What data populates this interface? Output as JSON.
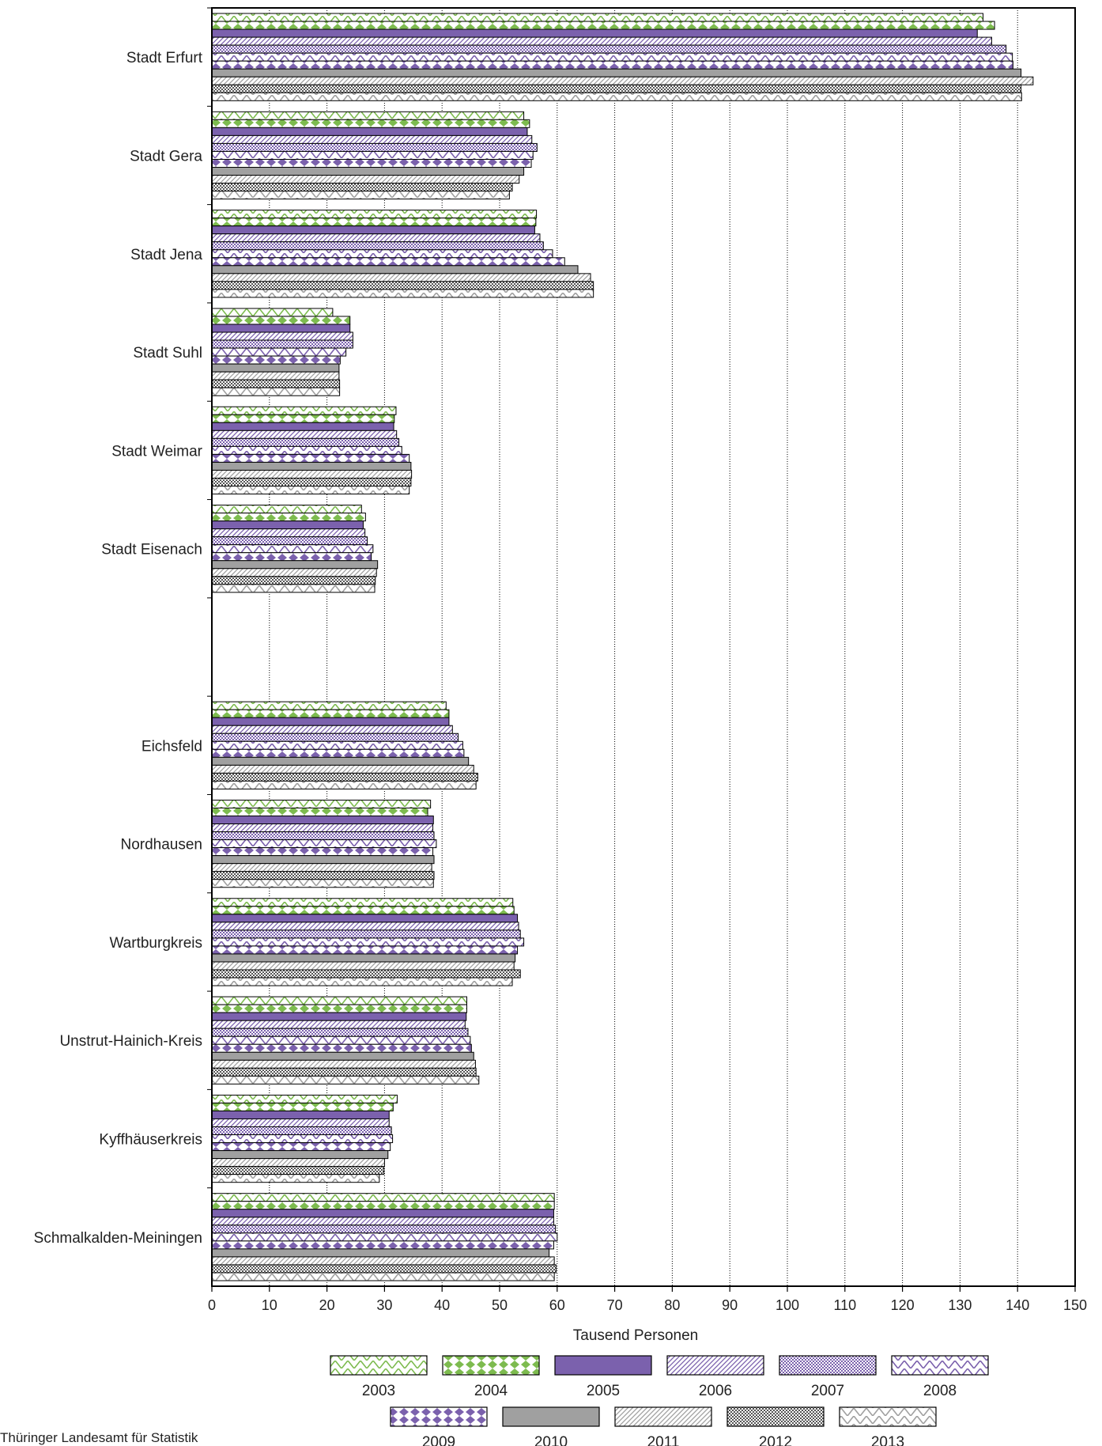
{
  "footer_text": "Thüringer Landesamt für Statistik",
  "colors": {
    "green": "#7dbb4f",
    "purple": "#7b61ad",
    "gray": "#a0a0a0",
    "darkgray": "#555555",
    "outline": "#000000"
  },
  "chart_data": {
    "type": "bar",
    "orientation": "horizontal",
    "xlabel": "Tausend Personen",
    "xlim": [
      0,
      150
    ],
    "xticks": [
      0,
      10,
      20,
      30,
      40,
      50,
      60,
      70,
      80,
      90,
      100,
      110,
      120,
      130,
      140,
      150
    ],
    "grid": "vertical dotted",
    "legend_placement": "bottom",
    "categories": [
      "Stadt Erfurt",
      "Stadt Gera",
      "Stadt Jena",
      "Stadt Suhl",
      "Stadt Weimar",
      "Stadt Eisenach",
      "",
      "Eichsfeld",
      "Nordhausen",
      "Wartburgkreis",
      "Unstrut-Hainich-Kreis",
      "Kyffhäuserkreis",
      "Schmalkalden-Meiningen"
    ],
    "series": [
      {
        "name": "2003",
        "pattern": "zigzag",
        "color": "#7dbb4f",
        "values": [
          134,
          54.2,
          56.4,
          21,
          32,
          26,
          null,
          40.7,
          38,
          52.3,
          44.3,
          32.2,
          59.5
        ]
      },
      {
        "name": "2004",
        "pattern": "diamonds",
        "color": "#7dbb4f",
        "values": [
          136,
          55.2,
          56.3,
          24,
          31.7,
          26.7,
          null,
          41.2,
          37.5,
          52.5,
          44.3,
          31.5,
          59.5
        ]
      },
      {
        "name": "2005",
        "pattern": "solid",
        "color": "#7b61ad",
        "values": [
          133,
          54.8,
          56.1,
          24,
          31.6,
          26.3,
          null,
          41.2,
          38.5,
          53.1,
          44.2,
          30.8,
          59.4
        ]
      },
      {
        "name": "2006",
        "pattern": "diagonal",
        "color": "#7b61ad",
        "values": [
          135.5,
          55.6,
          57,
          24.5,
          32.1,
          26.6,
          null,
          41.8,
          38.4,
          53.3,
          44,
          30.8,
          59.4
        ]
      },
      {
        "name": "2007",
        "pattern": "check",
        "color": "#7b61ad",
        "values": [
          138,
          56.5,
          57.6,
          24.5,
          32.5,
          27,
          null,
          42.8,
          38.6,
          53.6,
          44.5,
          31.2,
          59.7
        ]
      },
      {
        "name": "2008",
        "pattern": "zigzag",
        "color": "#7b61ad",
        "values": [
          139.1,
          55.8,
          59.2,
          23.3,
          33,
          28,
          null,
          43.6,
          39,
          54.2,
          44.9,
          31.4,
          60
        ]
      },
      {
        "name": "2009",
        "pattern": "diamonds",
        "color": "#7b61ad",
        "values": [
          139.2,
          55.5,
          61.3,
          22.3,
          34.3,
          27.7,
          null,
          43.8,
          38.4,
          53.1,
          45.1,
          31,
          59.4
        ]
      },
      {
        "name": "2010",
        "pattern": "solid",
        "color": "#a0a0a0",
        "values": [
          140.6,
          54.2,
          63.6,
          22.1,
          34.6,
          28.8,
          null,
          44.6,
          38.6,
          52.7,
          45.5,
          30.6,
          58.6
        ]
      },
      {
        "name": "2011",
        "pattern": "diagonal",
        "color": "#a0a0a0",
        "values": [
          142.7,
          53.4,
          65.8,
          22.1,
          34.7,
          28.6,
          null,
          45.5,
          38.2,
          52.5,
          45.8,
          30,
          59.5
        ]
      },
      {
        "name": "2012",
        "pattern": "check",
        "color": "#555555",
        "values": [
          140.6,
          52.2,
          66.3,
          22.2,
          34.6,
          28.4,
          null,
          46.2,
          38.6,
          53.6,
          45.9,
          29.9,
          59.8
        ]
      },
      {
        "name": "2013",
        "pattern": "zigzag",
        "color": "#a0a0a0",
        "values": [
          140.7,
          51.7,
          66.3,
          22.2,
          34.3,
          28.3,
          null,
          45.9,
          38.5,
          52.2,
          46.4,
          29.1,
          59.5
        ]
      }
    ]
  }
}
